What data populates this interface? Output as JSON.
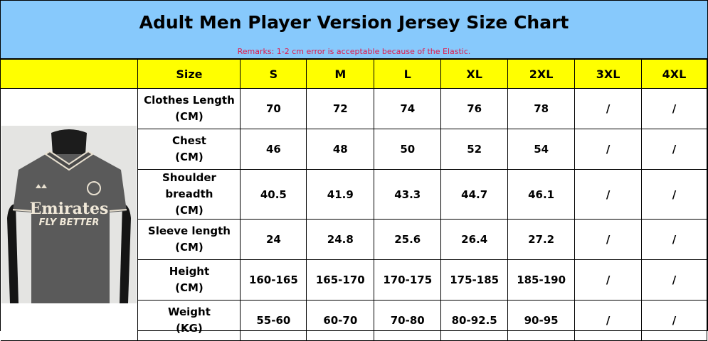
{
  "title": "Adult Men Player Version Jersey Size Chart",
  "remark": "Remarks: 1-2 cm error is acceptable because of the Elastic.",
  "colors": {
    "title_bg": "#87C9FC",
    "header_bg": "#FFFF00",
    "remark": "#E0184A"
  },
  "header": [
    "Size",
    "S",
    "M",
    "L",
    "XL",
    "2XL",
    "3XL",
    "4XL"
  ],
  "rows": [
    {
      "label": "Clothes Length",
      "unit": "(CM)",
      "values": [
        "70",
        "72",
        "74",
        "76",
        "78",
        "/",
        "/"
      ]
    },
    {
      "label": "Chest",
      "unit": "(CM)",
      "values": [
        "46",
        "48",
        "50",
        "52",
        "54",
        "/",
        "/"
      ]
    },
    {
      "label": "Shoulder breadth",
      "unit": "(CM)",
      "values": [
        "40.5",
        "41.9",
        "43.3",
        "44.7",
        "46.1",
        "/",
        "/"
      ]
    },
    {
      "label": "Sleeve length",
      "unit": "(CM)",
      "values": [
        "24",
        "24.8",
        "25.6",
        "26.4",
        "27.2",
        "/",
        "/"
      ]
    },
    {
      "label": "Height",
      "unit": "(CM)",
      "values": [
        "160-165",
        "165-170",
        "170-175",
        "175-185",
        "185-190",
        "/",
        "/"
      ]
    },
    {
      "label": "Weight",
      "unit": "(KG)",
      "values": [
        "55-60",
        "60-70",
        "70-80",
        "80-92.5",
        "90-95",
        "/",
        "/"
      ]
    }
  ],
  "photo": {
    "sponsor": "Emirates",
    "tagline": "FLY BETTER",
    "icon": "jersey-photo"
  }
}
